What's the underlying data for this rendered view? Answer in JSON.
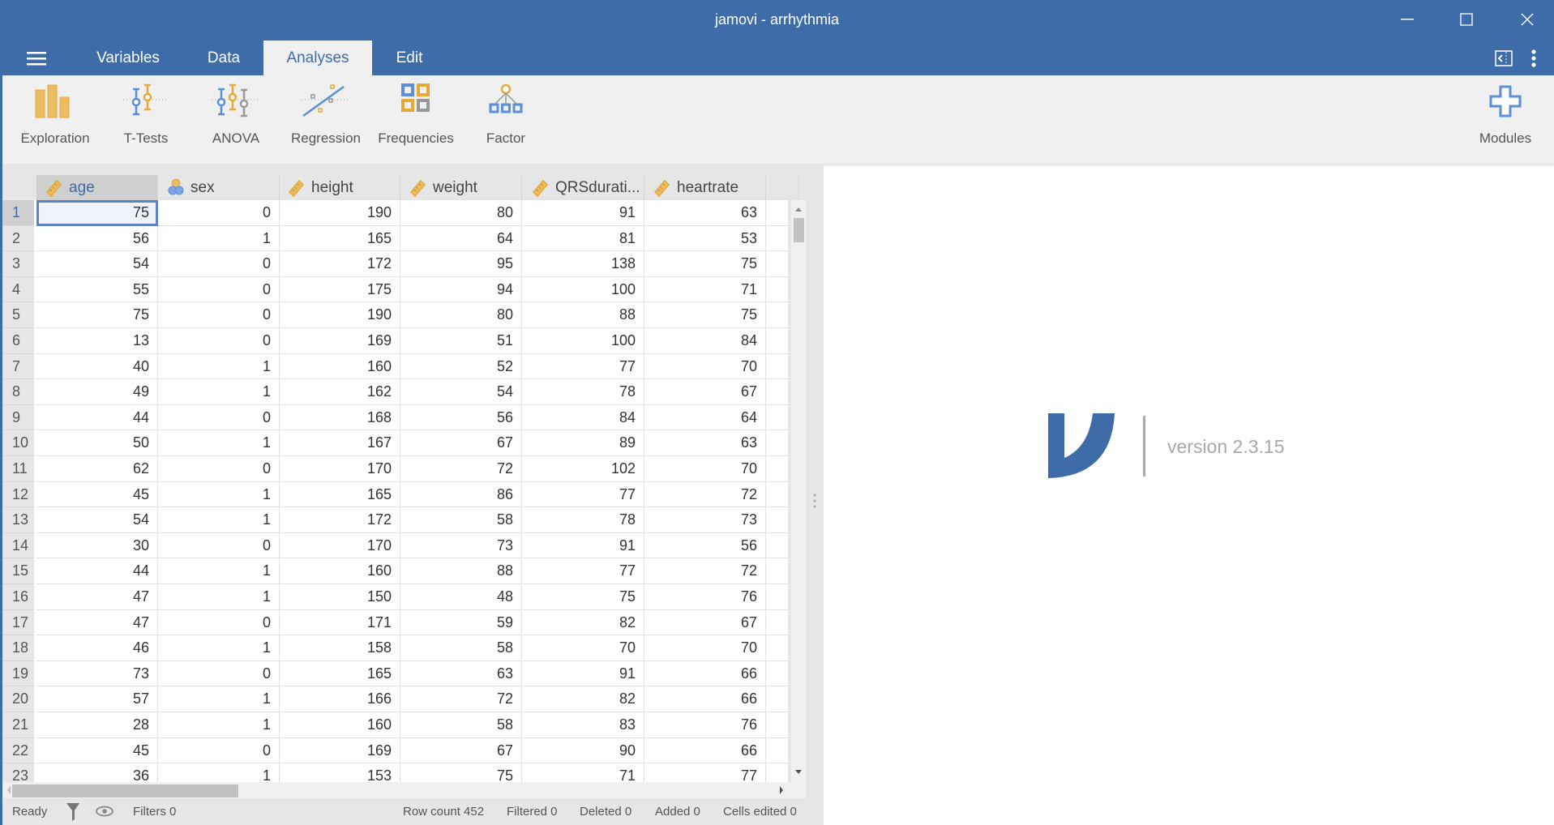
{
  "window": {
    "title": "jamovi - arrhythmia"
  },
  "menu": {
    "tabs": [
      {
        "label": "Variables"
      },
      {
        "label": "Data"
      },
      {
        "label": "Analyses",
        "active": true
      },
      {
        "label": "Edit"
      }
    ]
  },
  "toolbar": {
    "items": [
      {
        "label": "Exploration",
        "icon": "exploration-icon"
      },
      {
        "label": "T-Tests",
        "icon": "t-tests-icon"
      },
      {
        "label": "ANOVA",
        "icon": "anova-icon"
      },
      {
        "label": "Regression",
        "icon": "regression-icon"
      },
      {
        "label": "Frequencies",
        "icon": "frequencies-icon"
      },
      {
        "label": "Factor",
        "icon": "factor-icon"
      }
    ],
    "modules_label": "Modules"
  },
  "colors": {
    "accent": "#3e6ca8",
    "measure_icon": "#e8a838",
    "nominal_icon": "#5b8fd9"
  },
  "table": {
    "columns": [
      {
        "name": "age",
        "type": "continuous"
      },
      {
        "name": "sex",
        "type": "nominal"
      },
      {
        "name": "height",
        "type": "continuous"
      },
      {
        "name": "weight",
        "type": "continuous"
      },
      {
        "name": "QRSdurati...",
        "type": "continuous"
      },
      {
        "name": "heartrate",
        "type": "continuous"
      }
    ],
    "rows": [
      [
        "1",
        "75",
        "0",
        "190",
        "80",
        "91",
        "63"
      ],
      [
        "2",
        "56",
        "1",
        "165",
        "64",
        "81",
        "53"
      ],
      [
        "3",
        "54",
        "0",
        "172",
        "95",
        "138",
        "75"
      ],
      [
        "4",
        "55",
        "0",
        "175",
        "94",
        "100",
        "71"
      ],
      [
        "5",
        "75",
        "0",
        "190",
        "80",
        "88",
        "75"
      ],
      [
        "6",
        "13",
        "0",
        "169",
        "51",
        "100",
        "84"
      ],
      [
        "7",
        "40",
        "1",
        "160",
        "52",
        "77",
        "70"
      ],
      [
        "8",
        "49",
        "1",
        "162",
        "54",
        "78",
        "67"
      ],
      [
        "9",
        "44",
        "0",
        "168",
        "56",
        "84",
        "64"
      ],
      [
        "10",
        "50",
        "1",
        "167",
        "67",
        "89",
        "63"
      ],
      [
        "11",
        "62",
        "0",
        "170",
        "72",
        "102",
        "70"
      ],
      [
        "12",
        "45",
        "1",
        "165",
        "86",
        "77",
        "72"
      ],
      [
        "13",
        "54",
        "1",
        "172",
        "58",
        "78",
        "73"
      ],
      [
        "14",
        "30",
        "0",
        "170",
        "73",
        "91",
        "56"
      ],
      [
        "15",
        "44",
        "1",
        "160",
        "88",
        "77",
        "72"
      ],
      [
        "16",
        "47",
        "1",
        "150",
        "48",
        "75",
        "76"
      ],
      [
        "17",
        "47",
        "0",
        "171",
        "59",
        "82",
        "67"
      ],
      [
        "18",
        "46",
        "1",
        "158",
        "58",
        "70",
        "70"
      ],
      [
        "19",
        "73",
        "0",
        "165",
        "63",
        "91",
        "66"
      ],
      [
        "20",
        "57",
        "1",
        "166",
        "72",
        "82",
        "66"
      ],
      [
        "21",
        "28",
        "1",
        "160",
        "58",
        "83",
        "76"
      ],
      [
        "22",
        "45",
        "0",
        "169",
        "67",
        "90",
        "66"
      ],
      [
        "23",
        "36",
        "1",
        "153",
        "75",
        "71",
        "77"
      ]
    ]
  },
  "status": {
    "ready": "Ready",
    "filters": "Filters 0",
    "row_count": "Row count 452",
    "filtered": "Filtered 0",
    "deleted": "Deleted 0",
    "added": "Added 0",
    "cells_edited": "Cells edited 0"
  },
  "results": {
    "version": "version 2.3.15"
  }
}
